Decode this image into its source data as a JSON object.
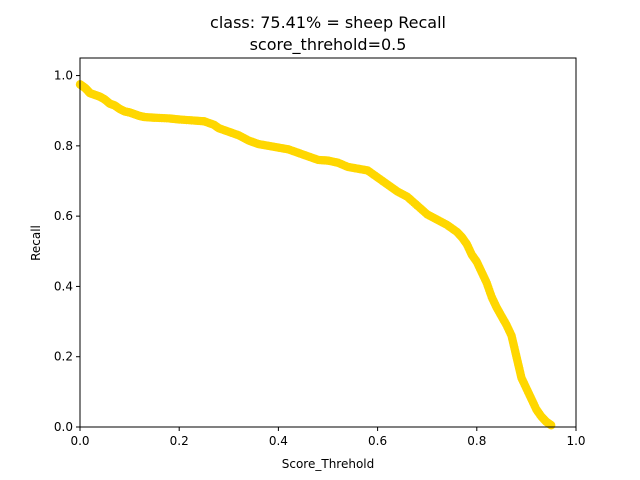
{
  "chart_data": {
    "type": "scatter",
    "title": "class: 75.41% = sheep Recall",
    "subtitle": "score_threhold=0.5",
    "xlabel": "Score_Threhold",
    "ylabel": "Recall",
    "xlim": [
      0.0,
      1.0
    ],
    "ylim": [
      0.0,
      1.05
    ],
    "x_ticks": [
      "0.0",
      "0.2",
      "0.4",
      "0.6",
      "0.8",
      "1.0"
    ],
    "y_ticks": [
      "0.0",
      "0.2",
      "0.4",
      "0.6",
      "0.8",
      "1.0"
    ],
    "grid": false,
    "legend": "none",
    "series": [
      {
        "color": "#ffd700",
        "points": [
          [
            0.0,
            0.975
          ],
          [
            0.005,
            0.97
          ],
          [
            0.01,
            0.965
          ],
          [
            0.015,
            0.958
          ],
          [
            0.02,
            0.95
          ],
          [
            0.03,
            0.945
          ],
          [
            0.04,
            0.94
          ],
          [
            0.05,
            0.932
          ],
          [
            0.06,
            0.92
          ],
          [
            0.07,
            0.915
          ],
          [
            0.08,
            0.905
          ],
          [
            0.09,
            0.898
          ],
          [
            0.1,
            0.895
          ],
          [
            0.11,
            0.89
          ],
          [
            0.12,
            0.885
          ],
          [
            0.13,
            0.882
          ],
          [
            0.15,
            0.88
          ],
          [
            0.18,
            0.878
          ],
          [
            0.2,
            0.875
          ],
          [
            0.23,
            0.872
          ],
          [
            0.25,
            0.87
          ],
          [
            0.27,
            0.86
          ],
          [
            0.28,
            0.85
          ],
          [
            0.3,
            0.84
          ],
          [
            0.32,
            0.83
          ],
          [
            0.34,
            0.815
          ],
          [
            0.36,
            0.805
          ],
          [
            0.38,
            0.8
          ],
          [
            0.4,
            0.795
          ],
          [
            0.42,
            0.79
          ],
          [
            0.44,
            0.78
          ],
          [
            0.46,
            0.77
          ],
          [
            0.48,
            0.76
          ],
          [
            0.5,
            0.758
          ],
          [
            0.52,
            0.752
          ],
          [
            0.54,
            0.74
          ],
          [
            0.56,
            0.735
          ],
          [
            0.58,
            0.73
          ],
          [
            0.6,
            0.71
          ],
          [
            0.62,
            0.69
          ],
          [
            0.64,
            0.67
          ],
          [
            0.66,
            0.655
          ],
          [
            0.68,
            0.63
          ],
          [
            0.7,
            0.605
          ],
          [
            0.72,
            0.59
          ],
          [
            0.74,
            0.575
          ],
          [
            0.76,
            0.555
          ],
          [
            0.77,
            0.54
          ],
          [
            0.78,
            0.52
          ],
          [
            0.79,
            0.49
          ],
          [
            0.8,
            0.47
          ],
          [
            0.81,
            0.44
          ],
          [
            0.82,
            0.41
          ],
          [
            0.83,
            0.37
          ],
          [
            0.84,
            0.34
          ],
          [
            0.85,
            0.315
          ],
          [
            0.86,
            0.29
          ],
          [
            0.87,
            0.26
          ],
          [
            0.875,
            0.23
          ],
          [
            0.88,
            0.2
          ],
          [
            0.885,
            0.17
          ],
          [
            0.89,
            0.14
          ],
          [
            0.9,
            0.11
          ],
          [
            0.91,
            0.08
          ],
          [
            0.92,
            0.05
          ],
          [
            0.93,
            0.03
          ],
          [
            0.94,
            0.015
          ],
          [
            0.95,
            0.005
          ]
        ]
      }
    ]
  }
}
